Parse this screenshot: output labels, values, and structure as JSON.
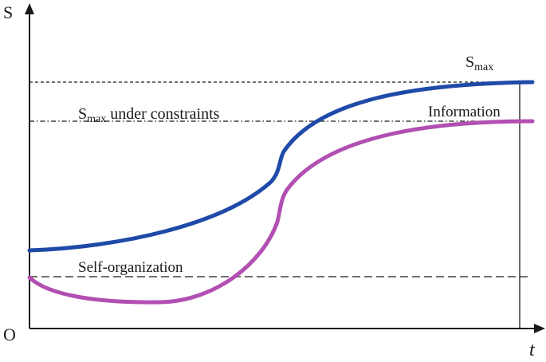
{
  "axes": {
    "y_label": "S",
    "x_label": "t",
    "origin_label": "O"
  },
  "labels": {
    "smax_base": "S",
    "smax_sub": "max",
    "constraint_base": "S",
    "constraint_sub": "max",
    "constraint_rest": " under constraints",
    "information": "Information",
    "self_organization": "Self-organization"
  },
  "colors": {
    "entropy_curve": "#1f4aa8",
    "information_curve": "#b24fb2",
    "axes": "#1a1a1a"
  }
}
